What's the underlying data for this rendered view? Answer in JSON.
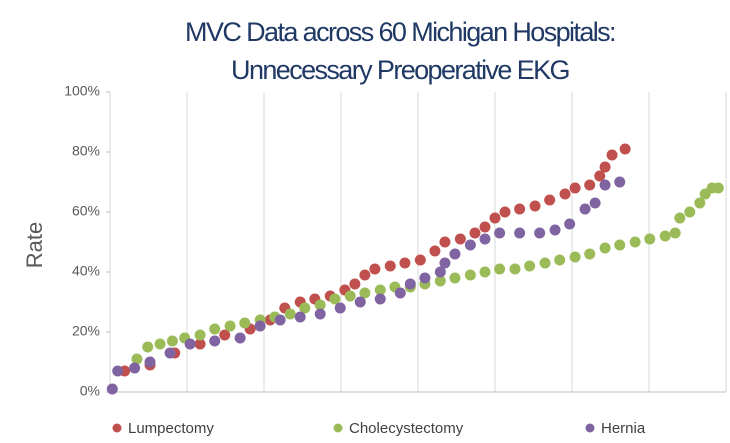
{
  "chart_data": {
    "type": "scatter",
    "title": [
      "MVC Data across 60 Michigan Hospitals:",
      "Unnecessary Preoperative EKG"
    ],
    "y_label": "Rate",
    "xlim": [
      0,
      80
    ],
    "xticks": [
      0,
      10,
      20,
      30,
      40,
      50,
      60,
      70,
      80
    ],
    "ylim": [
      0,
      100
    ],
    "yticks": [
      {
        "value": 0,
        "label": "0%"
      },
      {
        "value": 20,
        "label": "20%"
      },
      {
        "value": 40,
        "label": "40%"
      },
      {
        "value": 60,
        "label": "60%"
      },
      {
        "value": 80,
        "label": "80%"
      },
      {
        "value": 100,
        "label": "100%"
      }
    ],
    "grid": "x",
    "legend": "bottom",
    "series": [
      {
        "name": "Lumpectomy",
        "color": "#c0504d",
        "x": [
          1.9,
          5.2,
          8.4,
          11.7,
          14.9,
          18.2,
          20.8,
          22.7,
          24.7,
          26.6,
          28.6,
          30.5,
          31.8,
          33.1,
          34.4,
          36.4,
          38.3,
          40.3,
          42.2,
          43.5,
          45.5,
          47.4,
          48.7,
          50,
          51.3,
          53.2,
          55.2,
          57.1,
          59.1,
          60.4,
          62.3,
          63.6,
          64.3,
          65.2,
          66.9
        ],
        "values": [
          7,
          9,
          13,
          16,
          19,
          21,
          24,
          28,
          30,
          31,
          32,
          34,
          36,
          39,
          41,
          42,
          43,
          44,
          47,
          50,
          51,
          53,
          55,
          58,
          60,
          61,
          62,
          64,
          66,
          68,
          69,
          72,
          75,
          79,
          81
        ]
      },
      {
        "name": "Cholecystectomy",
        "color": "#9bbb59",
        "x": [
          3.5,
          4.9,
          6.5,
          8.1,
          9.7,
          11.7,
          13.6,
          15.6,
          17.5,
          19.5,
          21.4,
          23.4,
          25.3,
          27.3,
          29.2,
          31.2,
          33.1,
          35.1,
          37,
          39,
          40.9,
          42.9,
          44.8,
          46.8,
          48.7,
          50.6,
          52.6,
          54.5,
          56.5,
          58.4,
          60.4,
          62.3,
          64.3,
          66.2,
          68.2,
          70.1,
          72.1,
          73.4,
          74,
          75.3,
          76.6,
          77.3,
          78.2,
          79
        ],
        "values": [
          11,
          15,
          16,
          17,
          18,
          19,
          21,
          22,
          23,
          24,
          25,
          26,
          28,
          29,
          31,
          32,
          33,
          34,
          35,
          35,
          36,
          37,
          38,
          39,
          40,
          41,
          41,
          42,
          43,
          44,
          45,
          46,
          48,
          49,
          50,
          51,
          52,
          53,
          58,
          60,
          63,
          66,
          68,
          68
        ]
      },
      {
        "name": "Hernia",
        "color": "#8064a2",
        "x": [
          0.3,
          1,
          3.2,
          5.2,
          7.8,
          10.4,
          13.6,
          16.9,
          19.5,
          22.1,
          24.7,
          27.3,
          29.9,
          32.5,
          35.1,
          37.7,
          39,
          40.9,
          42.9,
          43.5,
          44.8,
          46.8,
          48.7,
          50.6,
          53.2,
          55.8,
          57.8,
          59.7,
          61.7,
          63,
          64.3,
          66.2
        ],
        "values": [
          1,
          7,
          8,
          10,
          13,
          16,
          17,
          18,
          22,
          24,
          25,
          26,
          28,
          30,
          31,
          33,
          36,
          38,
          40,
          43,
          46,
          49,
          51,
          53,
          53,
          53,
          54,
          56,
          61,
          63,
          69,
          70
        ]
      }
    ]
  }
}
